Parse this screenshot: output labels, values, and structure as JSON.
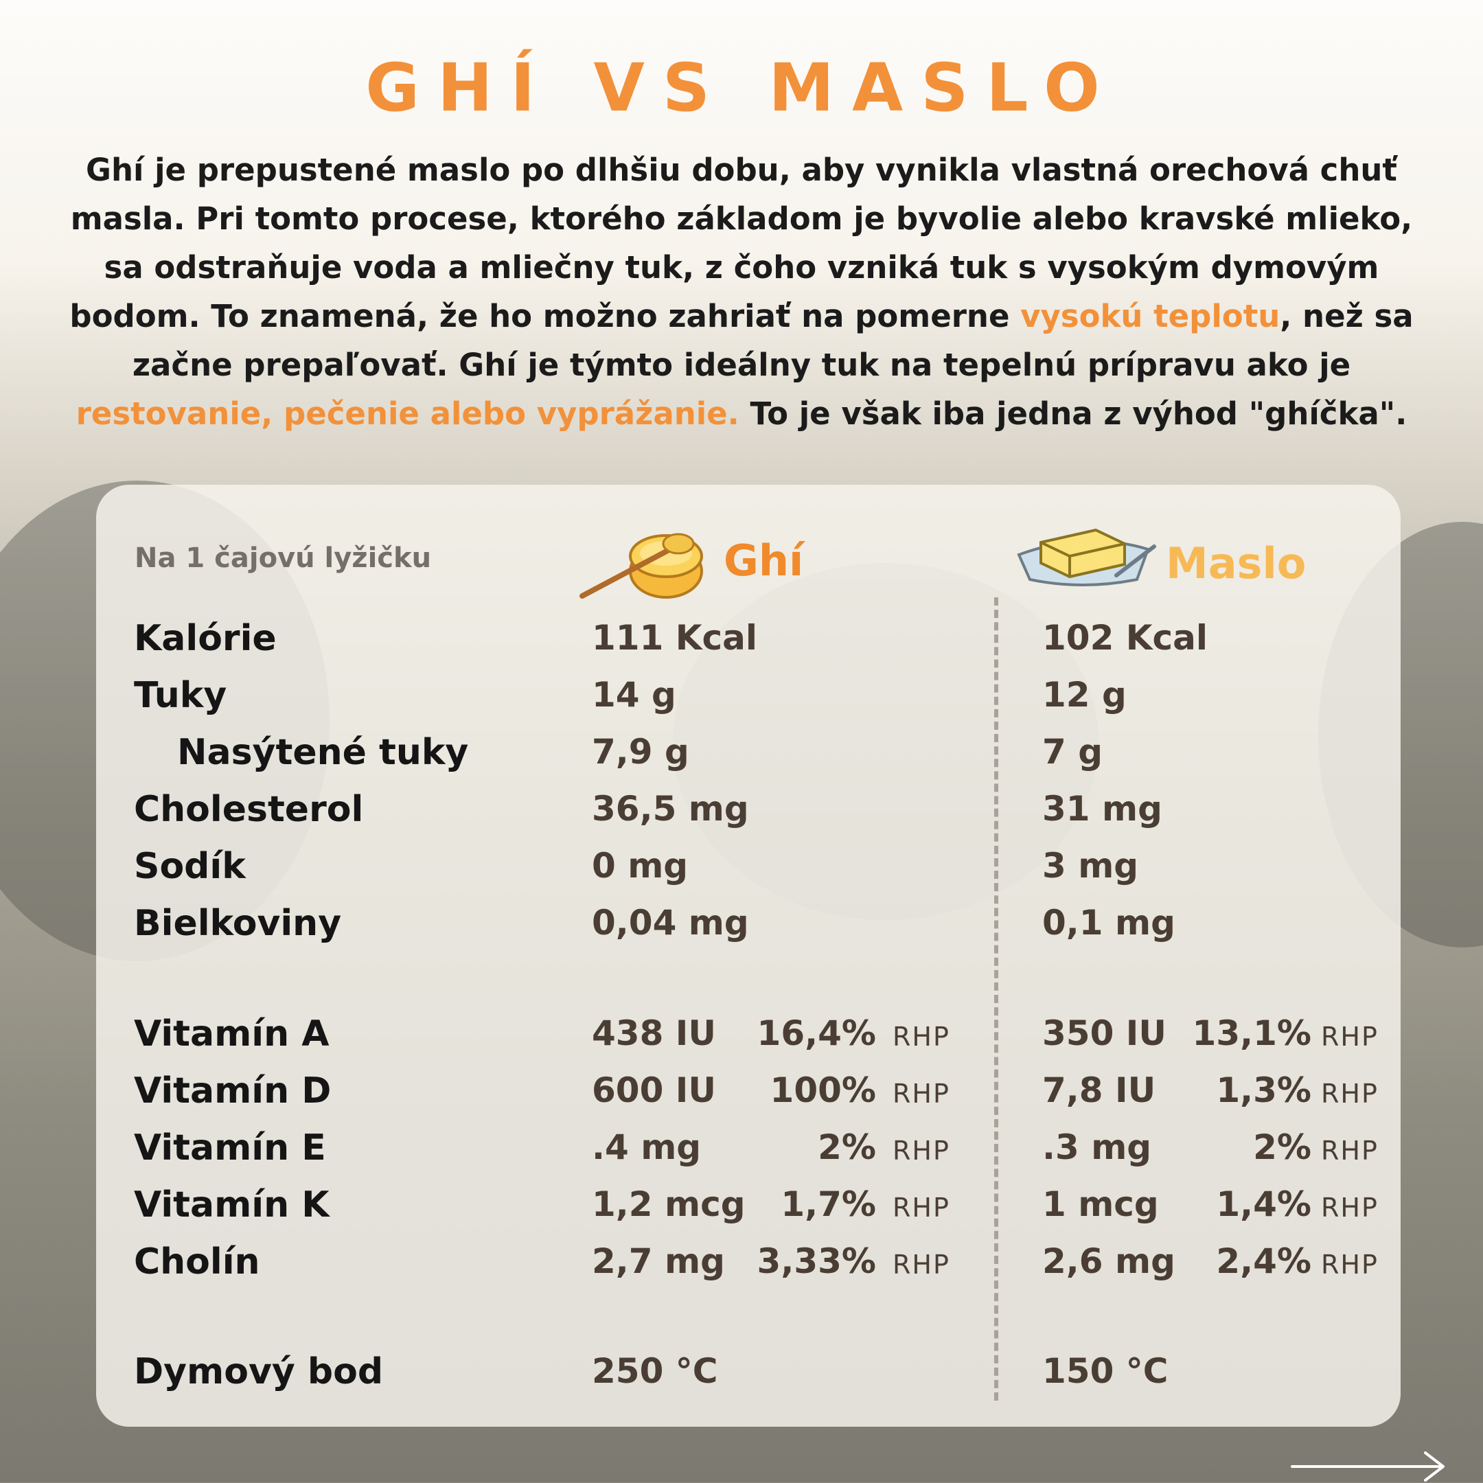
{
  "title": "GHÍ VS MASLO",
  "intro": {
    "p1": "Ghí je prepustené maslo po dlhšiu dobu, aby vynikla vlastná orechová chuť masla. Pri tomto procese, ktorého základom je byvolie alebo kravské mlieko, sa odstraňuje voda a mliečny tuk, z čoho vzniká tuk s vysokým dymovým bodom. To znamená, že ho možno zahriať na pomerne ",
    "h1": "vysokú teplotu",
    "p2": ", než sa začne prepaľovať. Ghí je týmto ideálny tuk na tepelnú prípravu ako je ",
    "h2": "restovanie, pečenie alebo vyprážanie.",
    "p3": " To je však iba jedna z výhod \"ghíčka\"."
  },
  "table": {
    "subhead": "Na 1 čajovú lyžičku",
    "col_ghi": "Ghí",
    "col_maslo": "Maslo",
    "rhp_label": "RHP",
    "rows": [
      {
        "label": "Kalórie",
        "ghi": "111 Kcal",
        "maslo": "102 Kcal"
      },
      {
        "label": "Tuky",
        "ghi": "14 g",
        "maslo": "12 g"
      },
      {
        "label": "Nasýtené tuky",
        "ghi": "7,9 g",
        "maslo": "7 g"
      },
      {
        "label": "Cholesterol",
        "ghi": "36,5 mg",
        "maslo": "31 mg"
      },
      {
        "label": "Sodík",
        "ghi": "0 mg",
        "maslo": "3 mg"
      },
      {
        "label": "Bielkoviny",
        "ghi": "0,04 mg",
        "maslo": "0,1 mg"
      }
    ],
    "vitamins": [
      {
        "label": "Vitamín A",
        "ghi": "438 IU",
        "ghi_pct": "16,4%",
        "maslo": "350 IU",
        "maslo_pct": "13,1%"
      },
      {
        "label": "Vitamín D",
        "ghi": "600 IU",
        "ghi_pct": "100%",
        "maslo": "7,8 IU",
        "maslo_pct": "1,3%"
      },
      {
        "label": "Vitamín E",
        "ghi": ".4 mg",
        "ghi_pct": "2%",
        "maslo": ".3 mg",
        "maslo_pct": "2%"
      },
      {
        "label": "Vitamín K",
        "ghi": "1,2 mcg",
        "ghi_pct": "1,7%",
        "maslo": "1 mcg",
        "maslo_pct": "1,4%"
      },
      {
        "label": "Cholín",
        "ghi": "2,7 mg",
        "ghi_pct": "3,33%",
        "maslo": "2,6 mg",
        "maslo_pct": "2,4%"
      }
    ],
    "smoke": {
      "label": "Dymový bod",
      "ghi": "250 °C",
      "maslo": "150 °C"
    }
  },
  "colors": {
    "accent": "#f2913a",
    "maslo": "#f7b955",
    "text": "#1b1b1b"
  },
  "icons": [
    "ghee-jar-icon",
    "butter-dish-icon",
    "next-arrow-icon"
  ]
}
